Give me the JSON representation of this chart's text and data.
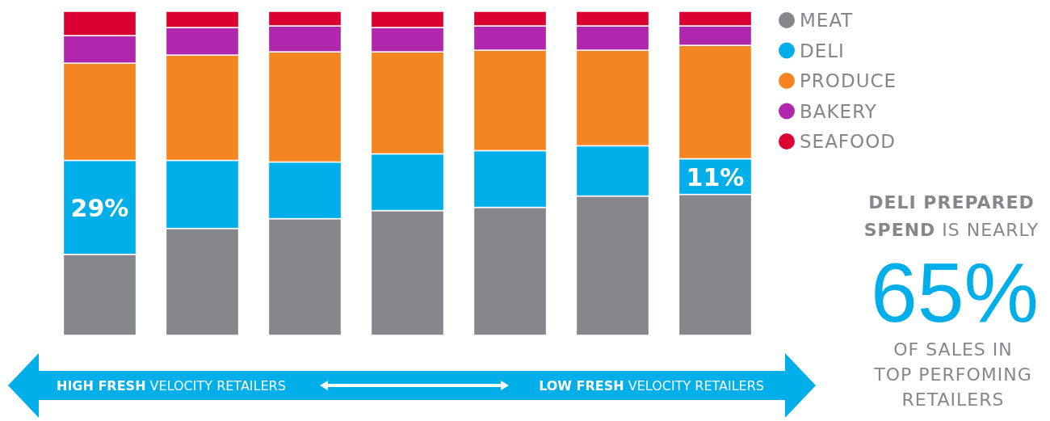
{
  "chart_data": {
    "type": "bar",
    "stacked": true,
    "categories": [
      null,
      null,
      null,
      null,
      null,
      null,
      null
    ],
    "ylim": [
      0,
      100
    ],
    "legend": "top right",
    "series": [
      {
        "name": "MEAT",
        "color": "#85878c",
        "values": [
          25,
          33,
          36,
          38.5,
          39.5,
          43,
          43.5
        ]
      },
      {
        "name": "DELI",
        "color": "#00aeea",
        "values": [
          29,
          21,
          17.5,
          17.5,
          17.5,
          15.5,
          11
        ],
        "value_labels": [
          "29%",
          null,
          null,
          null,
          null,
          null,
          "11%"
        ]
      },
      {
        "name": "PRODUCE",
        "color": "#f48521",
        "values": [
          30,
          32.5,
          34,
          31.5,
          31,
          29.5,
          35
        ]
      },
      {
        "name": "BAKERY",
        "color": "#b026ac",
        "values": [
          8.5,
          8.5,
          8,
          7.5,
          7.5,
          7.5,
          6
        ]
      },
      {
        "name": "SEAFOOD",
        "color": "#dc0032",
        "values": [
          7.5,
          5,
          4.5,
          5,
          4.5,
          4.5,
          4.5
        ]
      }
    ],
    "annotations": [
      "HIGH FRESH VELOCITY RETAILERS",
      "LOW FRESH VELOCITY RETAILERS",
      "DELI PREPARED SPEND IS NEARLY",
      "65%",
      "OF SALES IN TOP PERFOMING RETAILERS"
    ]
  }
}
